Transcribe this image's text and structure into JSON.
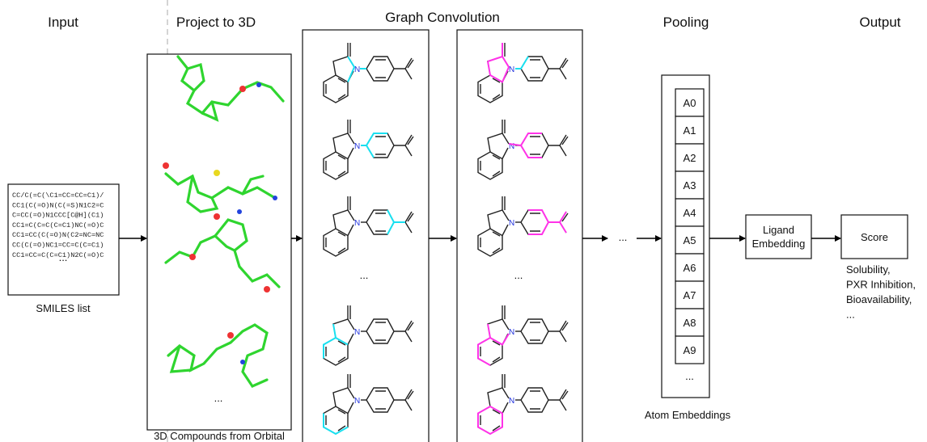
{
  "stages": {
    "input": "Input",
    "project": "Project to 3D",
    "graph": "Graph Convolution",
    "pooling": "Pooling",
    "output": "Output"
  },
  "smiles": {
    "lines": [
      "CC/C(=C(\\C1=CC=CC=C1)/",
      "CC1(C(=O)N(C(=S)N1C2=C",
      "C=CC(=O)N1CCC[C@H](C1)",
      "CC1=C(C=C(C=C1)NC(=O)C",
      "CC1=CC(C(=O)N(C2=NC=NC",
      "CC(C(=O)NC1=CC=C(C=C1)",
      "CC1=CC=C(C=C1)N2C(=O)C"
    ],
    "more": "...",
    "caption": "SMILES list"
  },
  "compounds": {
    "more": "...",
    "caption": "3D Compounds from Orbital"
  },
  "graph": {
    "layer_1_more": "...",
    "layer_2_more": "...",
    "next_layers": "..."
  },
  "atoms": {
    "items": [
      "A0",
      "A1",
      "A2",
      "A3",
      "A4",
      "A5",
      "A6",
      "A7",
      "A8",
      "A9"
    ],
    "more": "...",
    "caption": "Atom Embeddings"
  },
  "ligand": {
    "lines": [
      "Ligand",
      "Embedding"
    ]
  },
  "score": {
    "label": "Score",
    "properties": [
      "Solubility,",
      "PXR Inhibition,",
      "Bioavailability,",
      "..."
    ]
  }
}
